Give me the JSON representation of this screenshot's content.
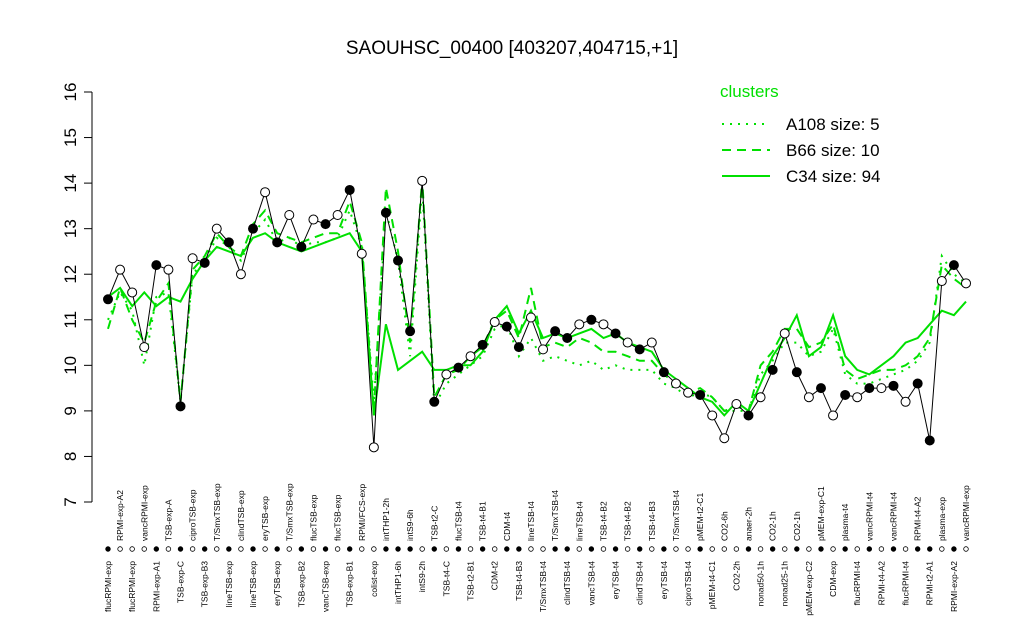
{
  "chart_data": {
    "type": "line",
    "title": "SAOUHSC_00400 [403207,404715,+1]",
    "categories": [
      "flucRPMI-exp",
      "RPMI-exp-A2",
      "flucRPMI-exp",
      "vancRPMI-exp",
      "RPMI-exp-A1",
      "TSB-exp-A",
      "TSB-exp-C",
      "ciproTSB-exp",
      "TSB-exp-B3",
      "T/SmxTSB-exp",
      "lineTSB-exp",
      "clindTSB-exp",
      "lineTSB-exp",
      "eryTSB-exp",
      "eryTSB-exp",
      "T/SmxTSB-exp",
      "TSB-exp-B2",
      "flucTSB-exp",
      "vancTSB-exp",
      "flucTSB-exp",
      "TSB-exp-B1",
      "RPMI/FCS-exp",
      "colist-exp",
      "intTHP1-2h",
      "intTHP1-6h",
      "intS9-6h",
      "intS9-2h",
      "TSB-t2-C",
      "TSB-t4-C",
      "flucTSB-t4",
      "TSB-t2-B1",
      "TSB-t4-B1",
      "CDM-t2",
      "CDM-t4",
      "TSB-t4-B3",
      "lineTSB-t4",
      "T/SmxTSB-t4",
      "T/SmxTSB-t4",
      "clindTSB-t4",
      "lineTSB-t4",
      "vancTSB-t4",
      "TSB-t4-B2",
      "eryTSB-t4",
      "TSB-t4-B2",
      "clindTSB-t4",
      "TSB-t4-B3",
      "eryTSB-t4",
      "T/SmxTSB-t4",
      "ciproTSB-t4",
      "pMEM-t2-C1",
      "pMEM-t4-C1",
      "CO2-6h",
      "CO2-2h",
      "anaer-2h",
      "nonad50-1h",
      "CO2-1h",
      "nonad25-1h",
      "CO2-1h",
      "pMEM-exp-C2",
      "pMEM-exp-C1",
      "CDM-exp",
      "plasma-t4",
      "flucRPMI-t4",
      "vancRPMI-t4",
      "RPMI-t4-A2",
      "vancRPMI-t4",
      "flucRPMI-t4",
      "RPMI-t4-A2",
      "RPMI-t2-A1",
      "plasma-exp",
      "RPMI-exp-A2",
      "vancRPMI-exp"
    ],
    "profile": {
      "color": "#000000",
      "values": [
        11.45,
        12.1,
        11.6,
        10.4,
        12.2,
        12.1,
        9.1,
        12.35,
        12.25,
        13.0,
        12.7,
        12.0,
        13.0,
        13.8,
        12.7,
        13.3,
        12.6,
        13.2,
        13.1,
        13.3,
        13.85,
        12.45,
        8.2,
        13.35,
        12.3,
        10.75,
        14.05,
        9.2,
        9.8,
        9.95,
        10.2,
        10.45,
        10.95,
        10.85,
        10.4,
        11.05,
        10.35,
        10.75,
        10.6,
        10.9,
        11.0,
        10.9,
        10.7,
        10.5,
        10.35,
        10.5,
        9.85,
        9.6,
        9.4,
        9.35,
        8.9,
        8.4,
        9.15,
        8.9,
        9.3,
        9.9,
        10.7,
        9.85,
        9.3,
        9.5,
        8.9,
        9.35,
        9.3,
        9.5,
        9.5,
        9.55,
        9.2,
        9.6,
        8.35,
        11.85,
        12.2,
        11.8
      ],
      "fills": [
        "#000000",
        "#ffffff",
        "#ffffff",
        "#ffffff",
        "#000000",
        "#ffffff",
        "#000000",
        "#ffffff",
        "#000000",
        "#ffffff",
        "#000000",
        "#ffffff",
        "#000000",
        "#ffffff",
        "#000000",
        "#ffffff",
        "#000000",
        "#ffffff",
        "#000000",
        "#ffffff",
        "#000000",
        "#ffffff",
        "#ffffff",
        "#000000",
        "#000000",
        "#000000",
        "#ffffff",
        "#000000",
        "#ffffff",
        "#000000",
        "#ffffff",
        "#000000",
        "#ffffff",
        "#000000",
        "#000000",
        "#ffffff",
        "#ffffff",
        "#000000",
        "#000000",
        "#ffffff",
        "#000000",
        "#ffffff",
        "#000000",
        "#ffffff",
        "#000000",
        "#ffffff",
        "#000000",
        "#ffffff",
        "#ffffff",
        "#000000",
        "#ffffff",
        "#ffffff",
        "#ffffff",
        "#000000",
        "#ffffff",
        "#000000",
        "#ffffff",
        "#000000",
        "#ffffff",
        "#000000",
        "#ffffff",
        "#000000",
        "#ffffff",
        "#000000",
        "#ffffff",
        "#000000",
        "#ffffff",
        "#000000",
        "#000000",
        "#ffffff",
        "#000000",
        "#ffffff"
      ]
    },
    "legend_title": "clusters",
    "series": [
      {
        "name": "A108 size: 5",
        "color": "#00e000",
        "dash": "dotted",
        "values": [
          11.0,
          11.6,
          11.2,
          10.0,
          11.5,
          11.6,
          9.2,
          12.0,
          12.3,
          12.8,
          12.6,
          12.3,
          12.9,
          13.2,
          12.7,
          12.8,
          12.6,
          12.7,
          12.7,
          12.8,
          13.4,
          12.6,
          9.2,
          13.4,
          12.3,
          10.2,
          13.9,
          9.1,
          9.6,
          9.8,
          10.0,
          10.2,
          10.8,
          10.9,
          10.2,
          10.6,
          10.1,
          10.2,
          10.1,
          10.0,
          10.1,
          9.9,
          10.0,
          9.9,
          9.9,
          9.9,
          9.6,
          9.5,
          9.3,
          9.4,
          9.3,
          9.0,
          9.0,
          9.0,
          9.8,
          10.1,
          10.5,
          10.5,
          10.2,
          10.3,
          10.8,
          9.8,
          9.6,
          9.6,
          9.7,
          9.8,
          9.9,
          10.1,
          10.5,
          12.4,
          12.0,
          11.8
        ]
      },
      {
        "name": "B66 size: 10",
        "color": "#00e000",
        "dash": "dashed",
        "values": [
          10.8,
          11.7,
          11.0,
          10.5,
          11.4,
          11.8,
          9.2,
          12.1,
          12.4,
          12.9,
          12.6,
          12.4,
          13.1,
          13.4,
          12.9,
          12.8,
          12.7,
          12.8,
          12.9,
          12.9,
          13.6,
          12.7,
          9.0,
          13.9,
          12.5,
          10.5,
          14.1,
          9.3,
          9.8,
          9.9,
          10.2,
          10.4,
          11.0,
          11.2,
          10.6,
          11.7,
          10.4,
          10.5,
          10.4,
          10.6,
          10.5,
          10.3,
          10.3,
          10.2,
          10.1,
          10.1,
          9.8,
          9.6,
          9.4,
          9.5,
          9.3,
          9.0,
          9.1,
          9.0,
          10.0,
          10.3,
          10.8,
          10.8,
          10.4,
          10.5,
          10.9,
          9.9,
          9.7,
          9.8,
          9.9,
          9.9,
          10.0,
          10.2,
          10.6,
          12.2,
          11.9,
          11.7
        ]
      },
      {
        "name": "C34 size: 94",
        "color": "#00e000",
        "dash": "solid",
        "values": [
          11.5,
          11.7,
          11.3,
          11.6,
          11.3,
          11.5,
          11.4,
          11.9,
          12.3,
          12.6,
          12.5,
          12.4,
          12.8,
          12.9,
          12.7,
          12.6,
          12.5,
          12.6,
          12.7,
          12.8,
          12.9,
          12.5,
          8.9,
          10.9,
          9.9,
          10.1,
          10.3,
          9.9,
          9.9,
          10.0,
          10.0,
          10.3,
          11.0,
          11.3,
          10.7,
          11.2,
          10.6,
          10.7,
          10.6,
          10.7,
          10.8,
          10.6,
          10.7,
          10.5,
          10.4,
          10.3,
          9.9,
          9.7,
          9.5,
          9.3,
          9.2,
          8.9,
          9.2,
          9.0,
          9.6,
          10.2,
          10.6,
          11.1,
          10.2,
          10.4,
          11.1,
          10.2,
          9.9,
          9.8,
          10.0,
          10.2,
          10.5,
          10.6,
          10.9,
          11.2,
          11.1,
          11.4
        ]
      }
    ],
    "ylim": [
      7,
      16
    ],
    "yticks": [
      7,
      8,
      9,
      10,
      11,
      12,
      13,
      14,
      15,
      16
    ]
  }
}
